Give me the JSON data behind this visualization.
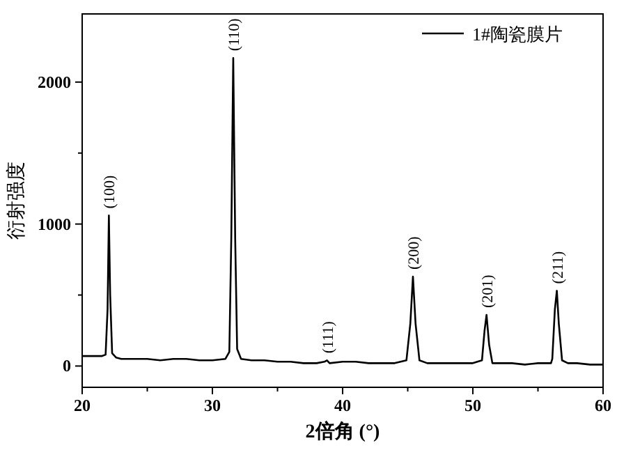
{
  "chart_data": {
    "type": "line",
    "xlabel": "2倍角 (°)",
    "ylabel": "衍射强度",
    "legend": "top right",
    "marker": "none",
    "line_style": "solid",
    "xlim": [
      20,
      60
    ],
    "ylim": [
      -150,
      2480
    ],
    "xticks": [
      20,
      {
        "value": 25,
        "label": null
      },
      30,
      {
        "value": 35,
        "label": null
      },
      40,
      {
        "value": 45,
        "label": null
      },
      50,
      {
        "value": 55,
        "label": null
      },
      60
    ],
    "yticks": [
      0,
      {
        "value": 500,
        "label": null
      },
      1000,
      {
        "value": 1500,
        "label": null
      },
      2000
    ],
    "series": [
      {
        "name": "1#陶瓷膜片",
        "color": "#000000",
        "x": [
          20,
          20.5,
          21,
          21.5,
          21.8,
          21.95,
          22.05,
          22.15,
          22.3,
          22.6,
          23,
          24,
          25,
          26,
          27,
          28,
          29,
          30,
          31,
          31.3,
          31.45,
          31.6,
          31.75,
          31.9,
          32.2,
          33,
          34,
          35,
          36,
          37,
          38,
          38.6,
          38.8,
          39,
          40,
          41,
          42,
          43,
          44,
          44.9,
          45.2,
          45.4,
          45.6,
          45.9,
          46.5,
          47,
          48,
          49,
          50,
          50.7,
          50.9,
          51.05,
          51.25,
          51.5,
          52,
          53,
          54,
          55,
          56,
          56.1,
          56.3,
          56.45,
          56.6,
          56.85,
          57.3,
          58,
          59,
          60
        ],
        "values": [
          70,
          70,
          70,
          70,
          80,
          400,
          1060,
          500,
          90,
          60,
          50,
          50,
          50,
          40,
          50,
          50,
          40,
          40,
          50,
          100,
          900,
          2170,
          900,
          120,
          50,
          40,
          40,
          30,
          30,
          20,
          20,
          30,
          40,
          20,
          30,
          30,
          20,
          20,
          20,
          40,
          300,
          630,
          300,
          40,
          20,
          20,
          20,
          20,
          20,
          40,
          250,
          360,
          150,
          20,
          20,
          20,
          10,
          20,
          20,
          50,
          400,
          530,
          300,
          40,
          20,
          20,
          10,
          10
        ]
      }
    ],
    "annotations": [
      {
        "text": "(100)",
        "x": 22.05,
        "y": 1060
      },
      {
        "text": "(110)",
        "x": 31.6,
        "y": 2170
      },
      {
        "text": "(111)",
        "x": 38.8,
        "y": 40
      },
      {
        "text": "(200)",
        "x": 45.4,
        "y": 630
      },
      {
        "text": "(201)",
        "x": 51.05,
        "y": 360
      },
      {
        "text": "(211)",
        "x": 56.45,
        "y": 530
      }
    ]
  }
}
